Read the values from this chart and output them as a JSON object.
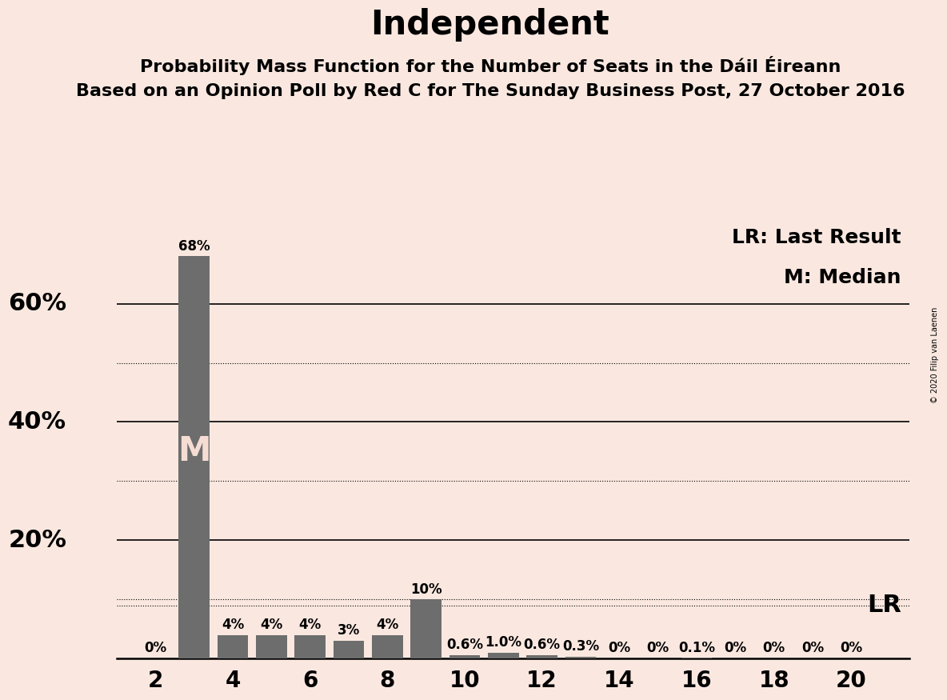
{
  "title": "Independent",
  "subtitle1": "Probability Mass Function for the Number of Seats in the Dáil Éireann",
  "subtitle2": "Based on an Opinion Poll by Red C for The Sunday Business Post, 27 October 2016",
  "copyright": "© 2020 Filip van Laenen",
  "seats": [
    2,
    3,
    4,
    5,
    6,
    7,
    8,
    9,
    10,
    11,
    12,
    13,
    14,
    15,
    16,
    17,
    18,
    19,
    20
  ],
  "probabilities": [
    0.0,
    68.0,
    4.0,
    4.0,
    4.0,
    3.0,
    4.0,
    10.0,
    0.6,
    1.0,
    0.6,
    0.3,
    0.0,
    0.0,
    0.1,
    0.0,
    0.0,
    0.0,
    0.0
  ],
  "labels": [
    "0%",
    "68%",
    "4%",
    "4%",
    "4%",
    "3%",
    "4%",
    "10%",
    "0.6%",
    "1.0%",
    "0.6%",
    "0.3%",
    "0%",
    "0%",
    "0.1%",
    "0%",
    "0%",
    "0%",
    "0%"
  ],
  "bar_color": "#6d6d6d",
  "background_color": "#fae8e0",
  "median_seat": 3,
  "last_result": 9.0,
  "xlim": [
    1.0,
    21.5
  ],
  "ylim": [
    0,
    75
  ],
  "solid_yticks": [
    20,
    40,
    60
  ],
  "dotted_yticks": [
    10,
    30,
    50
  ],
  "lr_dotted_y": 9.0,
  "xticks": [
    2,
    4,
    6,
    8,
    10,
    12,
    14,
    16,
    18,
    20
  ],
  "bar_width": 0.8,
  "label_fontsize": 12,
  "title_fontsize": 30,
  "subtitle1_fontsize": 16,
  "subtitle2_fontsize": 16,
  "axis_tick_fontsize": 20,
  "legend_fontsize": 18,
  "median_label_fontsize": 30,
  "median_label_color": "#f5ddd4",
  "lr_label": "LR",
  "lr_fontsize": 22,
  "ylabel_fontsize": 22,
  "ylabel_values": [
    20,
    40,
    60
  ],
  "ylabel_labels": [
    "20%",
    "40%",
    "60%"
  ]
}
